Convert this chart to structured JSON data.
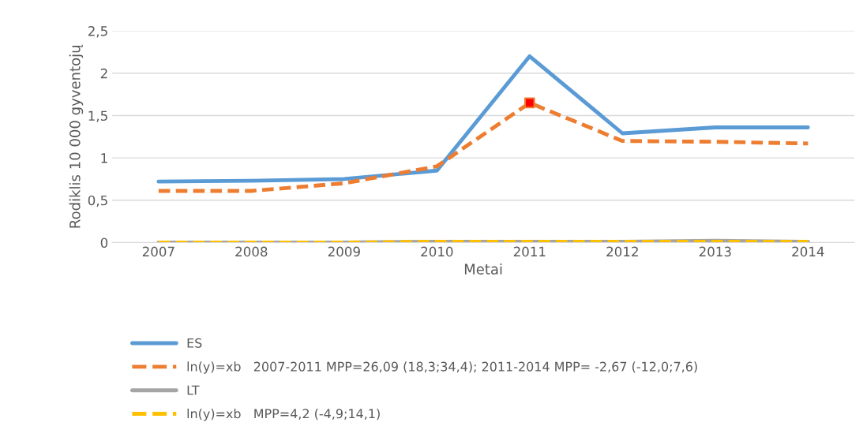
{
  "chart_data": {
    "type": "line",
    "xlabel": "Metai",
    "ylabel": "Rodiklis 10 000 gyventojų",
    "categories": [
      "2007",
      "2008",
      "2009",
      "2010",
      "2011",
      "2012",
      "2013",
      "2014"
    ],
    "series": [
      {
        "name": "ES",
        "color": "#5b9bd5",
        "line_style": "solid",
        "values": [
          0.72,
          0.73,
          0.75,
          0.85,
          2.2,
          1.29,
          1.36,
          1.36
        ]
      },
      {
        "name": "ln(y)=xb   2007-2011 MPP=26,09 (18,3;34,4); 2011-2014 MPP= -2,67 (-12,0;7,6)",
        "color": "#ed7d31",
        "line_style": "dashed",
        "values": [
          0.61,
          0.61,
          0.7,
          0.9,
          1.65,
          1.2,
          1.19,
          1.17
        ]
      },
      {
        "name": "LT",
        "color": "#a5a5a5",
        "line_style": "solid",
        "values": [
          0.0,
          0.0,
          0.0,
          0.01,
          0.01,
          0.01,
          0.02,
          0.01
        ]
      },
      {
        "name": "ln(y)=xb   MPP=4,2 (-4,9;14,1)",
        "color": "#ffc000",
        "line_style": "dashed",
        "values": [
          0.0,
          0.0,
          0.0,
          0.01,
          0.01,
          0.01,
          0.01,
          0.01
        ]
      },
      {
        "type": "scatter",
        "color": "#ff0000",
        "marker": "square",
        "values": [
          null,
          null,
          null,
          null,
          1.65,
          null,
          null,
          null
        ]
      }
    ],
    "ylim": [
      0,
      2.5
    ],
    "yticks": [
      {
        "value": 0,
        "label": "0"
      },
      {
        "value": 0.5,
        "label": "0,5"
      },
      {
        "value": 1,
        "label": "1"
      },
      {
        "value": 1.5,
        "label": "1,5"
      },
      {
        "value": 2,
        "label": "2"
      },
      {
        "value": 2.5,
        "label": "2,5"
      }
    ],
    "grid": "y",
    "legend": "bottom",
    "marker": "none"
  }
}
